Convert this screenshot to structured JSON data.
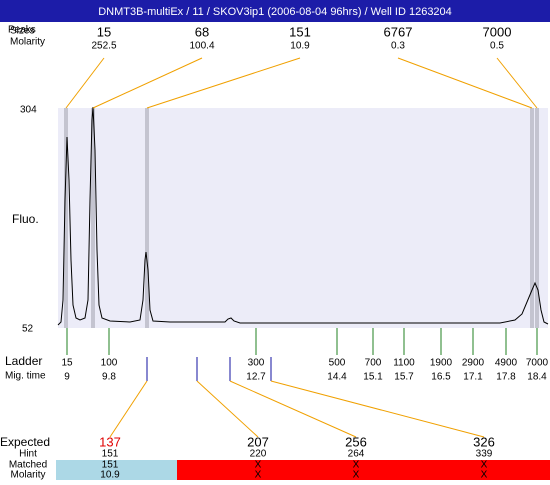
{
  "header": {
    "title": "DNMT3B-multiEx / 11 / SKOV3ip1 (2006-08-04 96hrs) / Well ID 1263204"
  },
  "peaks": {
    "labels": [
      "Peaks",
      "Sizes",
      "Molarity"
    ],
    "items": [
      {
        "size": "15",
        "molarity": "252.5"
      },
      {
        "size": "68",
        "molarity": "100.4"
      },
      {
        "size": "151",
        "molarity": "10.9"
      },
      {
        "size": "6767",
        "molarity": "0.3"
      },
      {
        "size": "7000",
        "molarity": "0.5"
      }
    ]
  },
  "axis": {
    "label": "Fluo.",
    "top": "304",
    "bottom": "52"
  },
  "ladder": {
    "labels": [
      "Ladder",
      "Mig. time"
    ],
    "items": [
      {
        "size": "15",
        "time": "9"
      },
      {
        "size": "100",
        "time": "9.8"
      },
      {
        "size": "300",
        "time": "12.7"
      },
      {
        "size": "500",
        "time": "14.4"
      },
      {
        "size": "700",
        "time": "15.1"
      },
      {
        "size": "1100",
        "time": "15.7"
      },
      {
        "size": "1900",
        "time": "16.5"
      },
      {
        "size": "2900",
        "time": "17.1"
      },
      {
        "size": "4900",
        "time": "17.8"
      },
      {
        "size": "7000",
        "time": "18.4"
      }
    ]
  },
  "expected": {
    "labels": [
      "Expected",
      "Hint",
      "Matched",
      "Molarity"
    ],
    "items": [
      {
        "expected": "137",
        "hint": "151",
        "matched": "151",
        "molarity": "10.9"
      },
      {
        "expected": "207",
        "hint": "220",
        "matched": "X",
        "molarity": "X"
      },
      {
        "expected": "256",
        "hint": "264",
        "matched": "X",
        "molarity": "X"
      },
      {
        "expected": "326",
        "hint": "339",
        "matched": "X",
        "molarity": "X"
      }
    ]
  }
}
